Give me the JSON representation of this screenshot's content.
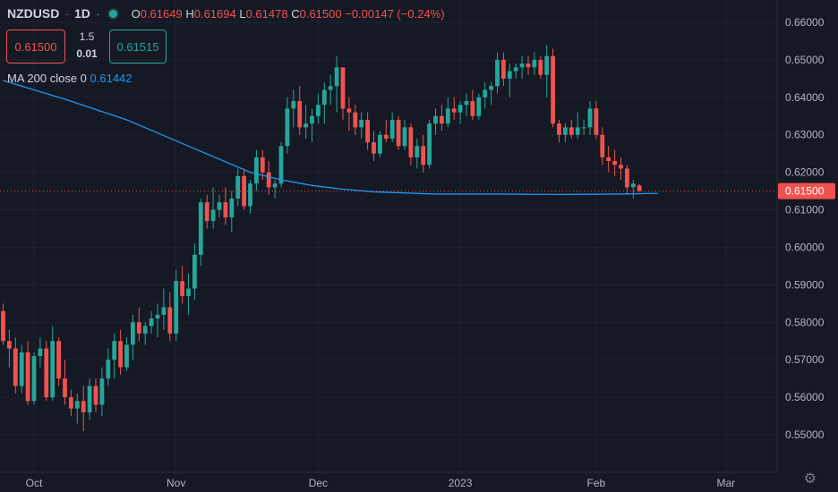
{
  "header": {
    "symbol": "NZDUSD",
    "interval": "1D",
    "status_color": "#26a69a",
    "o_label": "O",
    "o_value": "0.61649",
    "h_label": "H",
    "h_value": "0.61694",
    "l_label": "L",
    "l_value": "0.61478",
    "c_label": "C",
    "c_value": "0.61500",
    "change": "−0.00147 (−0.24%)"
  },
  "trade": {
    "sell_price": "0.61500",
    "spread_top": "1.5",
    "spread_bottom": "0.01",
    "buy_price": "0.61515"
  },
  "indicator": {
    "label": "MA 200 close 0",
    "value": "0.61442",
    "color": "#2196f3"
  },
  "settings_icon": "gear-icon",
  "chart_data": {
    "type": "candlestick",
    "y_ticks": [
      "0.66000",
      "0.65000",
      "0.64000",
      "0.63000",
      "0.62000",
      "0.61000",
      "0.60000",
      "0.59000",
      "0.58000",
      "0.57000",
      "0.56000",
      "0.55000"
    ],
    "ylim": [
      0.5425,
      0.6625
    ],
    "x_labels": [
      "Oct",
      "Nov",
      "Dec",
      "2023",
      "Feb",
      "Mar"
    ],
    "x_label_index": [
      5,
      28,
      51,
      74,
      96,
      117
    ],
    "n_slots": 126,
    "last_price_label": "0.61500",
    "last_price": 0.615,
    "up_color": "#26a69a",
    "down_color": "#ef5350",
    "candles": [
      [
        0.583,
        0.585,
        0.574,
        0.575
      ],
      [
        0.575,
        0.578,
        0.568,
        0.573
      ],
      [
        0.573,
        0.576,
        0.561,
        0.563
      ],
      [
        0.563,
        0.574,
        0.561,
        0.572
      ],
      [
        0.572,
        0.575,
        0.558,
        0.559
      ],
      [
        0.559,
        0.572,
        0.558,
        0.571
      ],
      [
        0.571,
        0.576,
        0.568,
        0.573
      ],
      [
        0.573,
        0.575,
        0.559,
        0.56
      ],
      [
        0.56,
        0.579,
        0.559,
        0.575
      ],
      [
        0.575,
        0.576,
        0.563,
        0.565
      ],
      [
        0.565,
        0.57,
        0.558,
        0.56
      ],
      [
        0.56,
        0.562,
        0.555,
        0.557
      ],
      [
        0.557,
        0.561,
        0.553,
        0.559
      ],
      [
        0.559,
        0.563,
        0.551,
        0.556
      ],
      [
        0.556,
        0.565,
        0.554,
        0.563
      ],
      [
        0.563,
        0.565,
        0.556,
        0.558
      ],
      [
        0.558,
        0.568,
        0.555,
        0.565
      ],
      [
        0.565,
        0.573,
        0.563,
        0.57
      ],
      [
        0.57,
        0.577,
        0.565,
        0.575
      ],
      [
        0.575,
        0.578,
        0.566,
        0.568
      ],
      [
        0.568,
        0.576,
        0.567,
        0.574
      ],
      [
        0.574,
        0.582,
        0.57,
        0.58
      ],
      [
        0.58,
        0.584,
        0.575,
        0.577
      ],
      [
        0.577,
        0.58,
        0.574,
        0.579
      ],
      [
        0.579,
        0.583,
        0.577,
        0.581
      ],
      [
        0.581,
        0.585,
        0.576,
        0.582
      ],
      [
        0.582,
        0.589,
        0.578,
        0.584
      ],
      [
        0.584,
        0.588,
        0.575,
        0.577
      ],
      [
        0.577,
        0.594,
        0.575,
        0.591
      ],
      [
        0.591,
        0.595,
        0.585,
        0.587
      ],
      [
        0.587,
        0.593,
        0.582,
        0.589
      ],
      [
        0.589,
        0.601,
        0.586,
        0.598
      ],
      [
        0.598,
        0.613,
        0.595,
        0.612
      ],
      [
        0.612,
        0.614,
        0.605,
        0.607
      ],
      [
        0.607,
        0.616,
        0.605,
        0.61
      ],
      [
        0.61,
        0.614,
        0.608,
        0.612
      ],
      [
        0.612,
        0.616,
        0.606,
        0.608
      ],
      [
        0.608,
        0.615,
        0.604,
        0.613
      ],
      [
        0.613,
        0.621,
        0.611,
        0.619
      ],
      [
        0.619,
        0.621,
        0.61,
        0.611
      ],
      [
        0.611,
        0.618,
        0.609,
        0.617
      ],
      [
        0.617,
        0.626,
        0.615,
        0.624
      ],
      [
        0.624,
        0.626,
        0.618,
        0.62
      ],
      [
        0.62,
        0.623,
        0.614,
        0.616
      ],
      [
        0.616,
        0.618,
        0.613,
        0.617
      ],
      [
        0.617,
        0.628,
        0.616,
        0.627
      ],
      [
        0.627,
        0.64,
        0.625,
        0.637
      ],
      [
        0.637,
        0.642,
        0.632,
        0.639
      ],
      [
        0.639,
        0.643,
        0.63,
        0.632
      ],
      [
        0.632,
        0.638,
        0.629,
        0.633
      ],
      [
        0.633,
        0.637,
        0.628,
        0.635
      ],
      [
        0.635,
        0.641,
        0.633,
        0.638
      ],
      [
        0.638,
        0.644,
        0.633,
        0.642
      ],
      [
        0.642,
        0.646,
        0.638,
        0.643
      ],
      [
        0.643,
        0.651,
        0.636,
        0.648
      ],
      [
        0.648,
        0.648,
        0.634,
        0.637
      ],
      [
        0.637,
        0.64,
        0.631,
        0.636
      ],
      [
        0.636,
        0.638,
        0.63,
        0.632
      ],
      [
        0.632,
        0.636,
        0.629,
        0.634
      ],
      [
        0.634,
        0.636,
        0.626,
        0.628
      ],
      [
        0.628,
        0.631,
        0.623,
        0.625
      ],
      [
        0.625,
        0.631,
        0.624,
        0.63
      ],
      [
        0.63,
        0.634,
        0.628,
        0.629
      ],
      [
        0.629,
        0.636,
        0.628,
        0.634
      ],
      [
        0.634,
        0.635,
        0.626,
        0.627
      ],
      [
        0.627,
        0.634,
        0.626,
        0.632
      ],
      [
        0.632,
        0.633,
        0.622,
        0.624
      ],
      [
        0.624,
        0.629,
        0.621,
        0.627
      ],
      [
        0.627,
        0.63,
        0.62,
        0.622
      ],
      [
        0.622,
        0.634,
        0.621,
        0.633
      ],
      [
        0.633,
        0.637,
        0.63,
        0.635
      ],
      [
        0.635,
        0.638,
        0.631,
        0.633
      ],
      [
        0.633,
        0.64,
        0.632,
        0.637
      ],
      [
        0.637,
        0.64,
        0.634,
        0.636
      ],
      [
        0.636,
        0.639,
        0.633,
        0.638
      ],
      [
        0.638,
        0.641,
        0.635,
        0.639
      ],
      [
        0.639,
        0.642,
        0.634,
        0.635
      ],
      [
        0.635,
        0.641,
        0.634,
        0.64
      ],
      [
        0.64,
        0.644,
        0.637,
        0.642
      ],
      [
        0.642,
        0.644,
        0.638,
        0.643
      ],
      [
        0.643,
        0.652,
        0.641,
        0.65
      ],
      [
        0.65,
        0.652,
        0.643,
        0.645
      ],
      [
        0.645,
        0.649,
        0.64,
        0.647
      ],
      [
        0.647,
        0.649,
        0.645,
        0.648
      ],
      [
        0.648,
        0.651,
        0.645,
        0.649
      ],
      [
        0.649,
        0.651,
        0.646,
        0.648
      ],
      [
        0.648,
        0.652,
        0.646,
        0.65
      ],
      [
        0.65,
        0.651,
        0.645,
        0.646
      ],
      [
        0.646,
        0.654,
        0.64,
        0.651
      ],
      [
        0.651,
        0.653,
        0.632,
        0.633
      ],
      [
        0.633,
        0.634,
        0.628,
        0.63
      ],
      [
        0.63,
        0.633,
        0.628,
        0.632
      ],
      [
        0.632,
        0.634,
        0.629,
        0.63
      ],
      [
        0.63,
        0.636,
        0.629,
        0.632
      ],
      [
        0.632,
        0.634,
        0.63,
        0.632
      ],
      [
        0.632,
        0.639,
        0.63,
        0.637
      ],
      [
        0.637,
        0.639,
        0.629,
        0.63
      ],
      [
        0.63,
        0.632,
        0.622,
        0.624
      ],
      [
        0.624,
        0.627,
        0.62,
        0.623
      ],
      [
        0.623,
        0.626,
        0.619,
        0.622
      ],
      [
        0.622,
        0.624,
        0.618,
        0.621
      ],
      [
        0.621,
        0.622,
        0.614,
        0.616
      ],
      [
        0.616,
        0.618,
        0.613,
        0.617
      ],
      [
        0.6165,
        0.6169,
        0.6148,
        0.615
      ]
    ],
    "candle_start_slot": 0,
    "ma_200": [
      [
        0,
        0.6445
      ],
      [
        10,
        0.6395
      ],
      [
        20,
        0.634
      ],
      [
        30,
        0.627
      ],
      [
        40,
        0.62
      ],
      [
        45,
        0.618
      ],
      [
        50,
        0.6165
      ],
      [
        55,
        0.6155
      ],
      [
        60,
        0.6148
      ],
      [
        70,
        0.6142
      ],
      [
        80,
        0.6142
      ],
      [
        90,
        0.6141
      ],
      [
        100,
        0.6142
      ],
      [
        106,
        0.6144
      ]
    ]
  }
}
